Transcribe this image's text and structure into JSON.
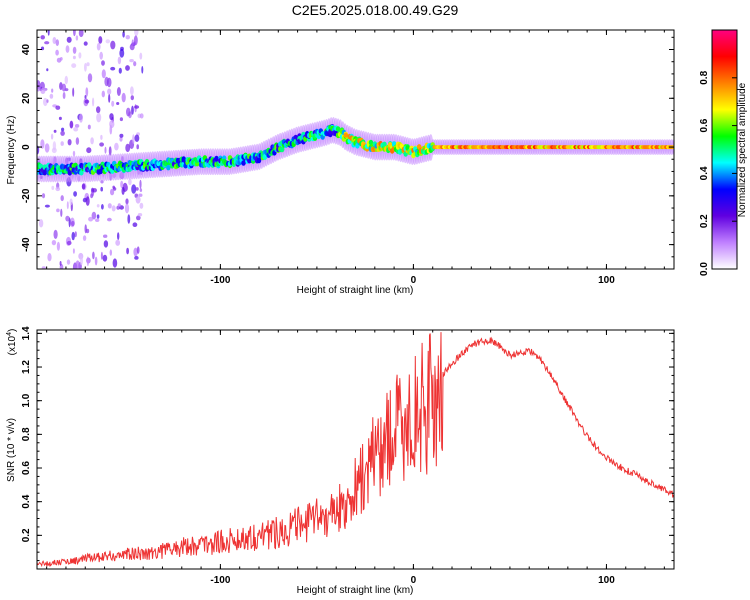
{
  "title": "C2E5.2025.018.00.49.G29",
  "chart_data": [
    {
      "type": "heatmap",
      "xlabel": "Height of straight line (km)",
      "ylabel": "Frequency (Hz)",
      "xlim": [
        -195,
        135
      ],
      "ylim": [
        -50,
        48
      ],
      "x_ticks": [
        -100,
        0,
        100
      ],
      "y_ticks": [
        -40,
        -20,
        0,
        20,
        40
      ],
      "grid": false,
      "ridge": {
        "x": [
          -195,
          -170,
          -150,
          -130,
          -110,
          -95,
          -80,
          -70,
          -60,
          -50,
          -45,
          -42,
          -38,
          -35,
          -30,
          -25,
          -20,
          -15,
          -10,
          -5,
          0,
          5,
          10,
          20,
          50,
          80,
          100,
          135
        ],
        "y": [
          -9,
          -9,
          -8,
          -7,
          -6,
          -6,
          -4,
          0,
          3,
          5,
          6,
          7,
          6,
          4,
          2,
          1,
          0,
          0,
          0,
          -1,
          -2,
          -1,
          0,
          0,
          0,
          0,
          0,
          0
        ]
      },
      "colorbar": {
        "label": "Normalized spectral amplitude",
        "range": [
          0,
          1
        ],
        "ticks": [
          0.0,
          0.2,
          0.4,
          0.6,
          0.8
        ],
        "colormap": [
          "#ffffff",
          "#c080ff",
          "#6000e0",
          "#0000ff",
          "#00ffff",
          "#00ff00",
          "#ffff00",
          "#ff8000",
          "#ff0000",
          "#ff0080"
        ]
      }
    },
    {
      "type": "line",
      "xlabel": "Height of straight line (km)",
      "ylabel": "SNR (10 * v/v)",
      "y_multiplier": "(x10",
      "y_multiplier_exp": "4",
      "xlim": [
        -195,
        135
      ],
      "ylim": [
        0,
        1.42
      ],
      "x_ticks": [
        -100,
        0,
        100
      ],
      "y_ticks": [
        0.2,
        0.4,
        0.6,
        0.8,
        1.0,
        1.2,
        1.4
      ],
      "color": "#ee3333",
      "grid": false,
      "series": [
        {
          "x": [
            -195,
            -185,
            -175,
            -165,
            -155,
            -145,
            -135,
            -125,
            -115,
            -105,
            -95,
            -85,
            -75,
            -65,
            -55,
            -45,
            -40,
            -35,
            -30,
            -25,
            -20,
            -15,
            -10,
            -5,
            0,
            5,
            10,
            15,
            20,
            25,
            30,
            35,
            40,
            45,
            50,
            55,
            60,
            65,
            70,
            75,
            80,
            85,
            90,
            95,
            100,
            105,
            110,
            115,
            120,
            125,
            130,
            135
          ],
          "y": [
            0.03,
            0.04,
            0.05,
            0.07,
            0.08,
            0.09,
            0.1,
            0.12,
            0.14,
            0.15,
            0.17,
            0.19,
            0.21,
            0.24,
            0.27,
            0.32,
            0.35,
            0.42,
            0.5,
            0.6,
            0.7,
            0.8,
            0.85,
            0.9,
            0.95,
            1.0,
            1.05,
            1.15,
            1.22,
            1.28,
            1.33,
            1.35,
            1.36,
            1.32,
            1.27,
            1.28,
            1.3,
            1.25,
            1.18,
            1.08,
            0.98,
            0.88,
            0.79,
            0.72,
            0.66,
            0.62,
            0.59,
            0.56,
            0.53,
            0.5,
            0.47,
            0.44
          ]
        }
      ]
    }
  ]
}
